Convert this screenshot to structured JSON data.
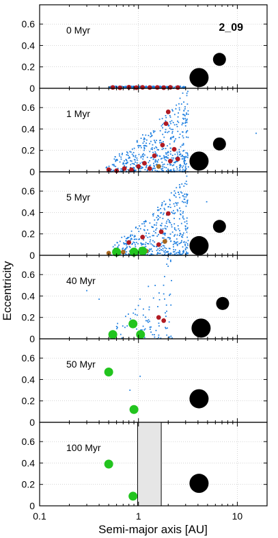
{
  "figure_label": "2_09",
  "ylabel": "Eccentricity",
  "xlabel": "Semi-major axis [AU]",
  "x_ticks": [
    {
      "value": 0.1,
      "label": "0.1"
    },
    {
      "value": 1,
      "label": "1"
    },
    {
      "value": 10,
      "label": "10"
    }
  ],
  "y_ticks": [
    {
      "value": 0,
      "label": "0"
    },
    {
      "value": 0.2,
      "label": "0.2"
    },
    {
      "value": 0.4,
      "label": "0.4"
    },
    {
      "value": 0.6,
      "label": "0.6"
    }
  ],
  "colors": {
    "planetesimal": "#1e7fe0",
    "embryo_dark": "#b01a22",
    "embryo_brown": "#a8661e",
    "planet_terrestrial": "#22c41e",
    "giant": "#000000",
    "shaded_region": "#e6e6e6",
    "grid": "#bbbbbb"
  },
  "chart_data": {
    "type": "scatter",
    "xscale": "log",
    "xlim": [
      0.1,
      20
    ],
    "ylim": [
      0,
      0.78
    ],
    "grid": true,
    "panels": [
      {
        "time_label": "0 Myr",
        "planetesimal_band": {
          "a_range": [
            0.5,
            3.0
          ],
          "e_max": 0.02
        },
        "embryos": [
          {
            "a": 0.55,
            "e": 0.008,
            "color": "dark"
          },
          {
            "a": 0.65,
            "e": 0.005,
            "color": "dark"
          },
          {
            "a": 0.8,
            "e": 0.01,
            "color": "dark"
          },
          {
            "a": 0.95,
            "e": 0.006,
            "color": "dark"
          },
          {
            "a": 1.1,
            "e": 0.009,
            "color": "dark"
          },
          {
            "a": 1.3,
            "e": 0.007,
            "color": "dark"
          },
          {
            "a": 1.55,
            "e": 0.008,
            "color": "dark"
          },
          {
            "a": 1.8,
            "e": 0.006,
            "color": "dark"
          },
          {
            "a": 2.1,
            "e": 0.009,
            "color": "dark"
          },
          {
            "a": 2.5,
            "e": 0.007,
            "color": "dark"
          }
        ],
        "giants": [
          {
            "a": 4.1,
            "e": 0.1,
            "size": "large"
          },
          {
            "a": 6.6,
            "e": 0.27,
            "size": "medium"
          }
        ]
      },
      {
        "time_label": "1 Myr",
        "planetesimal_cloud": {
          "a_range": [
            0.45,
            3.2
          ],
          "e_max": 0.68,
          "count": 520,
          "outliers": [
            {
              "a": 15.5,
              "e": 0.36
            }
          ]
        },
        "embryos": [
          {
            "a": 0.5,
            "e": 0.02,
            "color": "dark"
          },
          {
            "a": 0.6,
            "e": 0.01,
            "color": "dark"
          },
          {
            "a": 0.72,
            "e": 0.03,
            "color": "dark"
          },
          {
            "a": 0.85,
            "e": 0.02,
            "color": "dark"
          },
          {
            "a": 1.0,
            "e": 0.05,
            "color": "dark"
          },
          {
            "a": 1.15,
            "e": 0.08,
            "color": "dark"
          },
          {
            "a": 1.3,
            "e": 0.03,
            "color": "dark"
          },
          {
            "a": 1.45,
            "e": 0.15,
            "color": "dark"
          },
          {
            "a": 1.6,
            "e": 0.05,
            "color": "brown"
          },
          {
            "a": 1.75,
            "e": 0.25,
            "color": "dark"
          },
          {
            "a": 1.9,
            "e": 0.45,
            "color": "dark"
          },
          {
            "a": 2.0,
            "e": 0.56,
            "color": "dark"
          },
          {
            "a": 2.1,
            "e": 0.1,
            "color": "dark"
          },
          {
            "a": 2.3,
            "e": 0.21,
            "color": "dark"
          },
          {
            "a": 2.5,
            "e": 0.12,
            "color": "dark"
          }
        ],
        "giants": [
          {
            "a": 4.1,
            "e": 0.1,
            "size": "large"
          },
          {
            "a": 6.6,
            "e": 0.26,
            "size": "medium"
          }
        ]
      },
      {
        "time_label": "5 Myr",
        "planetesimal_cloud": {
          "a_range": [
            0.5,
            3.2
          ],
          "e_max": 0.65,
          "count": 480,
          "outliers": [
            {
              "a": 4.9,
              "e": 0.5
            }
          ]
        },
        "embryos": [
          {
            "a": 0.5,
            "e": 0.02,
            "color": "brown"
          },
          {
            "a": 0.7,
            "e": 0.03,
            "color": "brown"
          },
          {
            "a": 0.8,
            "e": 0.12,
            "color": "dark"
          },
          {
            "a": 1.1,
            "e": 0.17,
            "color": "dark"
          },
          {
            "a": 1.2,
            "e": 0.04,
            "color": "brown"
          },
          {
            "a": 1.7,
            "e": 0.22,
            "color": "dark"
          },
          {
            "a": 1.85,
            "e": 0.13,
            "color": "brown"
          },
          {
            "a": 2.0,
            "e": 0.39,
            "color": "dark"
          },
          {
            "a": 1.6,
            "e": 0.1,
            "color": "dark"
          }
        ],
        "planets": [
          {
            "a": 0.6,
            "e": 0.03
          },
          {
            "a": 0.9,
            "e": 0.03
          },
          {
            "a": 1.1,
            "e": 0.04
          }
        ],
        "giants": [
          {
            "a": 4.1,
            "e": 0.09,
            "size": "large"
          },
          {
            "a": 6.6,
            "e": 0.27,
            "size": "medium"
          }
        ]
      },
      {
        "time_label": "40 Myr",
        "planetesimal_cloud": {
          "a_range": [
            0.5,
            2.2
          ],
          "e_max": 0.75,
          "count": 90,
          "outliers": [
            {
              "a": 0.3,
              "e": 0.45
            },
            {
              "a": 0.4,
              "e": 0.37
            }
          ]
        },
        "embryos": [
          {
            "a": 1.6,
            "e": 0.2,
            "color": "dark"
          },
          {
            "a": 1.8,
            "e": 0.17,
            "color": "dark"
          }
        ],
        "planets": [
          {
            "a": 0.55,
            "e": 0.04
          },
          {
            "a": 0.88,
            "e": 0.14
          },
          {
            "a": 1.05,
            "e": 0.04
          }
        ],
        "giants": [
          {
            "a": 4.3,
            "e": 0.1,
            "size": "large"
          },
          {
            "a": 7.1,
            "e": 0.33,
            "size": "medium"
          }
        ]
      },
      {
        "time_label": "50 Myr",
        "planetesimal_cloud": {
          "a_range": [
            0.8,
            1.05
          ],
          "e_max": 0.5,
          "count": 0,
          "outliers": [
            {
              "a": 0.82,
              "e": 0.3
            },
            {
              "a": 1.04,
              "e": 0.43
            }
          ]
        },
        "embryos": [],
        "planets": [
          {
            "a": 0.5,
            "e": 0.47
          },
          {
            "a": 0.9,
            "e": 0.12
          }
        ],
        "giants": [
          {
            "a": 4.1,
            "e": 0.22,
            "size": "large"
          }
        ]
      },
      {
        "time_label": "100 Myr",
        "shaded_a_range": [
          0.98,
          1.7
        ],
        "embryos": [],
        "planets": [
          {
            "a": 0.5,
            "e": 0.39
          },
          {
            "a": 0.88,
            "e": 0.09
          }
        ],
        "giants": [
          {
            "a": 4.1,
            "e": 0.21,
            "size": "large"
          }
        ]
      }
    ]
  }
}
